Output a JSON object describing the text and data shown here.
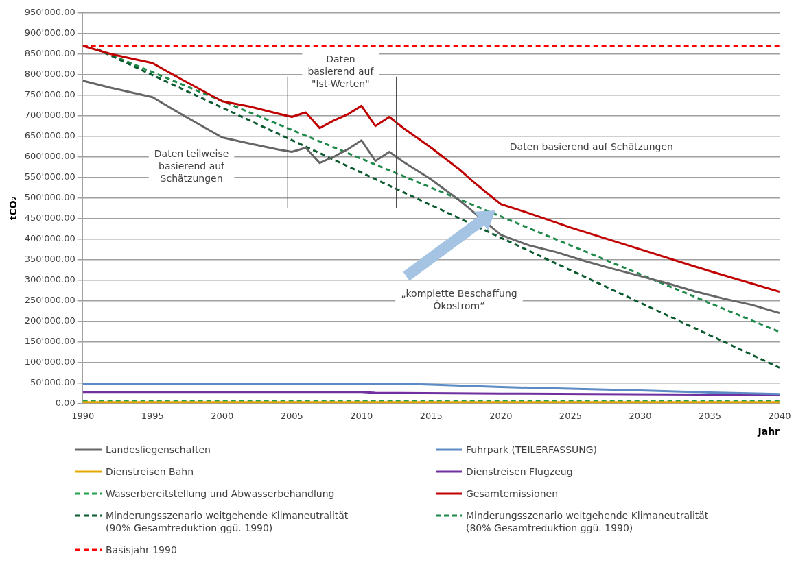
{
  "chart_data": {
    "type": "line",
    "ylabel": "tCO₂",
    "xlabel": "Jahr",
    "xlim": [
      1990,
      2040
    ],
    "xticks": [
      1990,
      1995,
      2000,
      2005,
      2010,
      2015,
      2020,
      2025,
      2030,
      2035,
      2040
    ],
    "ylim": [
      0,
      950000
    ],
    "yticks": [
      {
        "value": 0,
        "label": "0.00"
      },
      {
        "value": 50000,
        "label": "50'000.00"
      },
      {
        "value": 100000,
        "label": "100'000.00"
      },
      {
        "value": 150000,
        "label": "150'000.00"
      },
      {
        "value": 200000,
        "label": "200'000.00"
      },
      {
        "value": 250000,
        "label": "250'000.00"
      },
      {
        "value": 300000,
        "label": "300'000.00"
      },
      {
        "value": 350000,
        "label": "350'000.00"
      },
      {
        "value": 400000,
        "label": "400'000.00"
      },
      {
        "value": 450000,
        "label": "450'000.00"
      },
      {
        "value": 500000,
        "label": "500'000.00"
      },
      {
        "value": 550000,
        "label": "550'000.00"
      },
      {
        "value": 600000,
        "label": "600'000.00"
      },
      {
        "value": 650000,
        "label": "650'000.00"
      },
      {
        "value": 700000,
        "label": "700'000.00"
      },
      {
        "value": 750000,
        "label": "750'000.00"
      },
      {
        "value": 800000,
        "label": "800'000.00"
      },
      {
        "value": 850000,
        "label": "850'000.00"
      },
      {
        "value": 900000,
        "label": "900'000.00"
      },
      {
        "value": 950000,
        "label": "950'000.00"
      }
    ],
    "grid": "y",
    "legend": "bottom",
    "line_style": "solid",
    "series": [
      {
        "name": "Landesliegenschaften",
        "color": "#666666",
        "x": [
          1990,
          1992,
          1995,
          1997,
          2000,
          2002,
          2004,
          2005,
          2006,
          2007,
          2008,
          2009,
          2010,
          2011,
          2012,
          2013,
          2015,
          2017,
          2020,
          2022,
          2024,
          2026,
          2028,
          2030,
          2032,
          2034,
          2036,
          2038,
          2040
        ],
        "values": [
          785000,
          768000,
          745000,
          705000,
          647000,
          632000,
          618000,
          612000,
          622000,
          585000,
          600000,
          618000,
          640000,
          590000,
          612000,
          588000,
          545000,
          495000,
          410000,
          385000,
          368000,
          347000,
          328000,
          310000,
          292000,
          272000,
          255000,
          240000,
          220000
        ]
      },
      {
        "name": "Fuhrpark (TEILERFASSUNG)",
        "color": "#5b8ac4",
        "x": [
          1990,
          2013,
          2015,
          2020,
          2025,
          2030,
          2035,
          2040
        ],
        "values": [
          48000,
          48000,
          46000,
          40000,
          36000,
          32000,
          27000,
          23000
        ]
      },
      {
        "name": "Dienstreisen Bahn",
        "color": "#e6a800",
        "x": [
          1990,
          2040
        ],
        "values": [
          3000,
          3000
        ]
      },
      {
        "name": "Dienstreisen Flugzeug",
        "color": "#7030a0",
        "x": [
          1990,
          2010,
          2011,
          2020,
          2040
        ],
        "values": [
          28000,
          28000,
          26000,
          24000,
          21000
        ]
      },
      {
        "name": "Wasserbereitstellung und Abwasserbehandlung",
        "color": "#22a04b",
        "line_style": "dashed",
        "x": [
          1990,
          2040
        ],
        "values": [
          6000,
          6000
        ]
      },
      {
        "name": "Gesamtemissionen",
        "color": "#c00000",
        "x": [
          1990,
          1992,
          1995,
          1997,
          2000,
          2002,
          2004,
          2005,
          2006,
          2007,
          2008,
          2009,
          2010,
          2011,
          2012,
          2013,
          2015,
          2017,
          2018,
          2019,
          2020,
          2022,
          2025,
          2030,
          2035,
          2040
        ],
        "values": [
          870000,
          850000,
          828000,
          790000,
          735000,
          722000,
          705000,
          697000,
          708000,
          670000,
          688000,
          703000,
          724000,
          675000,
          697000,
          670000,
          622000,
          570000,
          540000,
          512000,
          485000,
          463000,
          428000,
          375000,
          322000,
          272000
        ]
      },
      {
        "name": "Minderungsszenario weitgehende Klimaneutralität\n(90% Gesamtreduktion ggü. 1990)",
        "color": "#0b5a2e",
        "line_style": "dashed",
        "x": [
          1991,
          2040
        ],
        "values": [
          862000,
          87000
        ]
      },
      {
        "name": "Minderungsszenario weitgehende Klimaneutralität\n(80% Gesamtreduktion ggü. 1990)",
        "color": "#1e8a4a",
        "line_style": "dashed",
        "x": [
          1991,
          2040
        ],
        "values": [
          862000,
          174000
        ]
      },
      {
        "name": "Basisjahr 1990",
        "color": "#ff0000",
        "line_style": "dashed",
        "x": [
          1990,
          2040
        ],
        "values": [
          870000,
          870000
        ]
      }
    ],
    "ref_lines": [
      {
        "axis": "x",
        "value": 2004.7
      },
      {
        "axis": "x",
        "value": 2012.5
      }
    ],
    "annotations": [
      "Daten teilweise\nbasierend auf\nSchätzungen",
      "Daten\nbasierend auf\n\"Ist-Werten\"",
      "Daten basierend auf Schätzungen",
      "„komplette Beschaffung\nÖkostrom“"
    ]
  }
}
